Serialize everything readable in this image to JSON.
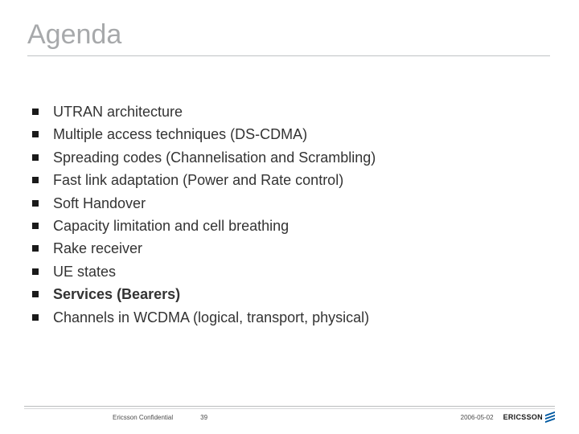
{
  "slide": {
    "title": "Agenda",
    "title_color": "#a7a9ab",
    "title_fontsize": 34,
    "underline_color": "#c0c2c4",
    "background_color": "#ffffff",
    "bullet_color": "#1a1a1a",
    "item_color": "#333333",
    "item_fontsize": 18,
    "items": [
      {
        "text": "UTRAN architecture",
        "bold": false
      },
      {
        "text": "Multiple access techniques (DS-CDMA)",
        "bold": false
      },
      {
        "text": "Spreading codes (Channelisation and Scrambling)",
        "bold": false
      },
      {
        "text": "Fast link adaptation (Power and Rate control)",
        "bold": false
      },
      {
        "text": "Soft Handover",
        "bold": false
      },
      {
        "text": "Capacity limitation and cell breathing",
        "bold": false
      },
      {
        "text": "Rake receiver",
        "bold": false
      },
      {
        "text": "UE states",
        "bold": false
      },
      {
        "text": "Services (Bearers)",
        "bold": true
      },
      {
        "text": "Channels in WCDMA (logical, transport, physical)",
        "bold": false
      }
    ]
  },
  "footer": {
    "confidential": "Ericsson Confidential",
    "page_number": "39",
    "date": "2006-05-02",
    "logo_text": "ERICSSON",
    "line_top_color": "#b9bbbd",
    "line_bottom_color": "#d7d8da",
    "text_color": "#4b4b4b",
    "fontsize": 8,
    "logo_stripe_color": "#0059a1"
  }
}
